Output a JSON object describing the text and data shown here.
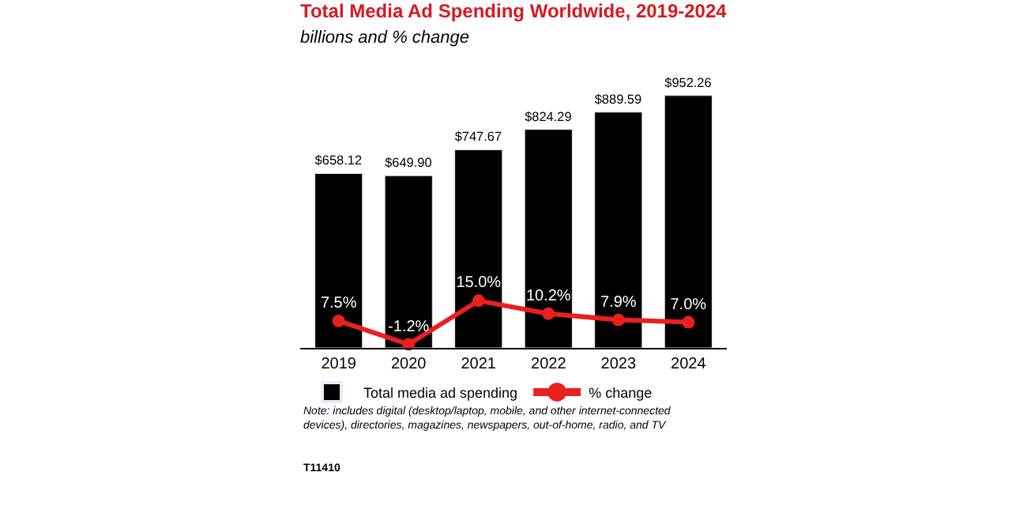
{
  "chart_data": {
    "type": "bar",
    "title": "Total Media Ad Spending Worldwide, 2019-2024",
    "subtitle": "billions and % change",
    "categories": [
      "2019",
      "2020",
      "2021",
      "2022",
      "2023",
      "2024"
    ],
    "series": [
      {
        "name": "Total media ad spending",
        "color": "#000000",
        "values": [
          658.12,
          649.9,
          747.67,
          824.29,
          889.59,
          952.26
        ],
        "value_labels": [
          "$658.12",
          "$649.90",
          "$747.67",
          "$824.29",
          "$889.59",
          "$952.26"
        ]
      },
      {
        "name": "% change",
        "type": "line",
        "axis": "y2",
        "color": "#e8201f",
        "marker": "circle",
        "values": [
          7.5,
          -1.2,
          15.0,
          10.2,
          7.9,
          7.0
        ],
        "value_labels": [
          "7.5%",
          "-1.2%",
          "15.0%",
          "10.2%",
          "7.9%",
          "7.0%"
        ]
      }
    ],
    "tick_labels": "x",
    "legend": "bottom",
    "annotations": [
      "Note: includes digital (desktop/laptop, mobile, and other internet-connected devices), directories, magazines, newspapers, out-of-home, radio, and TV",
      "T11410"
    ]
  }
}
